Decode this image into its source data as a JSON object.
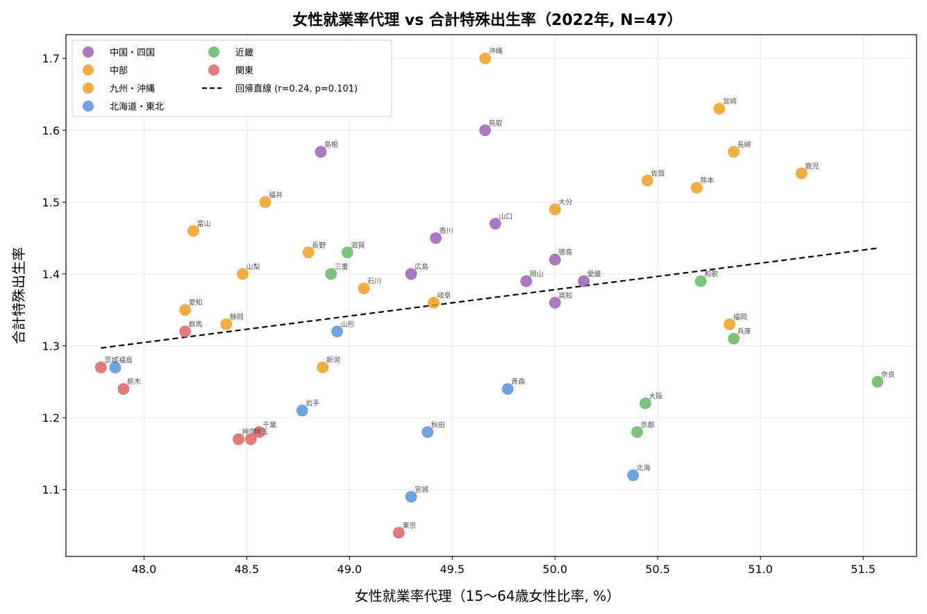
{
  "chart_data": {
    "type": "scatter",
    "title": "女性就業率代理 vs 合計特殊出生率（2022年, N=47）",
    "xlabel": "女性就業率代理（15〜64歳女性比率, %）",
    "ylabel": "合計特殊出生率",
    "xlim": [
      47.62,
      51.76
    ],
    "ylim": [
      1.007,
      1.733
    ],
    "xticks": [
      "48.0",
      "48.5",
      "49.0",
      "49.5",
      "50.0",
      "50.5",
      "51.0",
      "51.5"
    ],
    "yticks": [
      "1.1",
      "1.2",
      "1.3",
      "1.4",
      "1.5",
      "1.6",
      "1.7"
    ],
    "grid": true,
    "legend_position": "top-left",
    "series": [
      {
        "name": "中国・四国",
        "color": "#9b59b6",
        "points": [
          {
            "label": "島根",
            "x": 48.86,
            "y": 1.57
          },
          {
            "label": "鳥取",
            "x": 49.66,
            "y": 1.6
          },
          {
            "label": "香川",
            "x": 49.42,
            "y": 1.45
          },
          {
            "label": "山口",
            "x": 49.71,
            "y": 1.47
          },
          {
            "label": "徳島",
            "x": 50.0,
            "y": 1.42
          },
          {
            "label": "広島",
            "x": 49.3,
            "y": 1.4
          },
          {
            "label": "岡山",
            "x": 49.86,
            "y": 1.39
          },
          {
            "label": "愛媛",
            "x": 50.14,
            "y": 1.39
          },
          {
            "label": "高知",
            "x": 50.0,
            "y": 1.36
          }
        ]
      },
      {
        "name": "中部",
        "color": "#f39c12",
        "points": [
          {
            "label": "福井",
            "x": 48.59,
            "y": 1.5
          },
          {
            "label": "富山",
            "x": 48.24,
            "y": 1.46
          },
          {
            "label": "長野",
            "x": 48.8,
            "y": 1.43
          },
          {
            "label": "山梨",
            "x": 48.48,
            "y": 1.4
          },
          {
            "label": "石川",
            "x": 49.07,
            "y": 1.38
          },
          {
            "label": "岐阜",
            "x": 49.41,
            "y": 1.36
          },
          {
            "label": "愛知",
            "x": 48.2,
            "y": 1.35
          },
          {
            "label": "静岡",
            "x": 48.4,
            "y": 1.33
          },
          {
            "label": "新潟",
            "x": 48.87,
            "y": 1.27
          }
        ]
      },
      {
        "name": "九州・沖縄",
        "color": "#f39c12",
        "points": [
          {
            "label": "沖縄",
            "x": 49.66,
            "y": 1.7
          },
          {
            "label": "宮崎",
            "x": 50.8,
            "y": 1.63
          },
          {
            "label": "長崎",
            "x": 50.87,
            "y": 1.57
          },
          {
            "label": "鹿児",
            "x": 51.2,
            "y": 1.54
          },
          {
            "label": "佐賀",
            "x": 50.45,
            "y": 1.53
          },
          {
            "label": "熊本",
            "x": 50.69,
            "y": 1.52
          },
          {
            "label": "大分",
            "x": 50.0,
            "y": 1.49
          },
          {
            "label": "福岡",
            "x": 50.85,
            "y": 1.33
          }
        ]
      },
      {
        "name": "北海道・東北",
        "color": "#4a90e2",
        "points": [
          {
            "label": "山形",
            "x": 48.94,
            "y": 1.32
          },
          {
            "label": "福島",
            "x": 47.86,
            "y": 1.27
          },
          {
            "label": "青森",
            "x": 49.77,
            "y": 1.24
          },
          {
            "label": "岩手",
            "x": 48.77,
            "y": 1.21
          },
          {
            "label": "秋田",
            "x": 49.38,
            "y": 1.18
          },
          {
            "label": "北海",
            "x": 50.38,
            "y": 1.12
          },
          {
            "label": "宮城",
            "x": 49.3,
            "y": 1.09
          }
        ]
      },
      {
        "name": "近畿",
        "color": "#5cb85c",
        "points": [
          {
            "label": "滋賀",
            "x": 48.99,
            "y": 1.43
          },
          {
            "label": "三重",
            "x": 48.91,
            "y": 1.4
          },
          {
            "label": "和歌",
            "x": 50.71,
            "y": 1.39
          },
          {
            "label": "兵庫",
            "x": 50.87,
            "y": 1.31
          },
          {
            "label": "奈良",
            "x": 51.57,
            "y": 1.25
          },
          {
            "label": "大阪",
            "x": 50.44,
            "y": 1.22
          },
          {
            "label": "京都",
            "x": 50.4,
            "y": 1.18
          }
        ]
      },
      {
        "name": "関東",
        "color": "#e05c5c",
        "points": [
          {
            "label": "群馬",
            "x": 48.2,
            "y": 1.32
          },
          {
            "label": "茨城",
            "x": 47.79,
            "y": 1.27
          },
          {
            "label": "栃木",
            "x": 47.9,
            "y": 1.24
          },
          {
            "label": "千葉",
            "x": 48.56,
            "y": 1.18
          },
          {
            "label": "神奈",
            "x": 48.46,
            "y": 1.17
          },
          {
            "label": "埼玉",
            "x": 48.52,
            "y": 1.17
          },
          {
            "label": "東京",
            "x": 49.24,
            "y": 1.04
          }
        ]
      }
    ],
    "regression": {
      "label": "回帰直線 (r=0.24, p=0.101)",
      "x": [
        47.79,
        51.57
      ],
      "y": [
        1.297,
        1.436
      ],
      "color": "#000000",
      "style": "dashed"
    }
  }
}
